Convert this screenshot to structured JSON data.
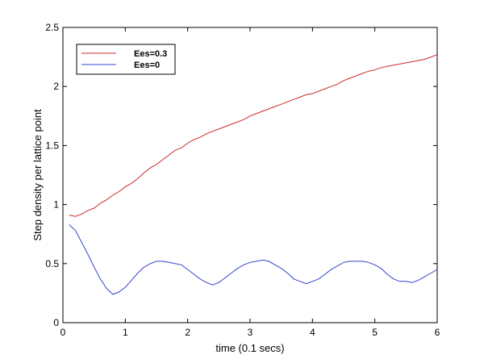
{
  "chart_data": {
    "type": "line",
    "title": "",
    "xlabel": "time (0.1 secs)",
    "ylabel": "Step density per lattice point",
    "xlim": [
      0,
      6
    ],
    "ylim": [
      0,
      2.5
    ],
    "xticks": [
      0,
      1,
      2,
      3,
      4,
      5,
      6
    ],
    "xtick_labels": [
      "0",
      "1",
      "2",
      "3",
      "4",
      "5",
      "6"
    ],
    "yticks": [
      0,
      0.5,
      1,
      1.5,
      2,
      2.5
    ],
    "ytick_labels": [
      "0",
      "0.5",
      "1",
      "1.5",
      "2",
      "2.5"
    ],
    "grid": false,
    "legend_position": "top-left",
    "series": [
      {
        "name": "Ees=0.3",
        "color": "#cc2a2a",
        "x": [
          0.1,
          0.2,
          0.3,
          0.4,
          0.5,
          0.6,
          0.7,
          0.8,
          0.9,
          1.0,
          1.1,
          1.2,
          1.3,
          1.4,
          1.5,
          1.6,
          1.7,
          1.8,
          1.9,
          2.0,
          2.1,
          2.2,
          2.3,
          2.4,
          2.5,
          2.6,
          2.7,
          2.8,
          2.9,
          3.0,
          3.1,
          3.2,
          3.3,
          3.4,
          3.5,
          3.6,
          3.7,
          3.8,
          3.9,
          4.0,
          4.1,
          4.2,
          4.3,
          4.4,
          4.5,
          4.6,
          4.7,
          4.8,
          4.9,
          5.0,
          5.1,
          5.2,
          5.3,
          5.4,
          5.5,
          5.6,
          5.7,
          5.8,
          5.9,
          6.0
        ],
        "y": [
          0.91,
          0.9,
          0.92,
          0.95,
          0.97,
          1.01,
          1.04,
          1.08,
          1.11,
          1.15,
          1.18,
          1.22,
          1.27,
          1.31,
          1.34,
          1.38,
          1.42,
          1.46,
          1.48,
          1.52,
          1.55,
          1.57,
          1.6,
          1.62,
          1.64,
          1.66,
          1.68,
          1.7,
          1.72,
          1.75,
          1.77,
          1.79,
          1.81,
          1.83,
          1.85,
          1.87,
          1.89,
          1.91,
          1.93,
          1.94,
          1.96,
          1.98,
          2.0,
          2.02,
          2.05,
          2.07,
          2.09,
          2.11,
          2.13,
          2.14,
          2.16,
          2.17,
          2.18,
          2.19,
          2.2,
          2.21,
          2.22,
          2.23,
          2.25,
          2.27
        ]
      },
      {
        "name": "Ees=0",
        "color": "#3344cc",
        "x": [
          0.1,
          0.2,
          0.3,
          0.4,
          0.5,
          0.6,
          0.7,
          0.8,
          0.9,
          1.0,
          1.1,
          1.2,
          1.3,
          1.4,
          1.5,
          1.6,
          1.7,
          1.8,
          1.9,
          2.0,
          2.1,
          2.2,
          2.3,
          2.4,
          2.5,
          2.6,
          2.7,
          2.8,
          2.9,
          3.0,
          3.1,
          3.2,
          3.3,
          3.4,
          3.5,
          3.6,
          3.7,
          3.8,
          3.9,
          4.0,
          4.1,
          4.2,
          4.3,
          4.4,
          4.5,
          4.6,
          4.7,
          4.8,
          4.9,
          5.0,
          5.1,
          5.2,
          5.3,
          5.4,
          5.5,
          5.6,
          5.7,
          5.8,
          5.9,
          6.0
        ],
        "y": [
          0.83,
          0.78,
          0.68,
          0.58,
          0.47,
          0.37,
          0.29,
          0.24,
          0.26,
          0.3,
          0.36,
          0.42,
          0.47,
          0.5,
          0.52,
          0.52,
          0.51,
          0.5,
          0.49,
          0.45,
          0.41,
          0.37,
          0.34,
          0.32,
          0.34,
          0.38,
          0.42,
          0.46,
          0.49,
          0.51,
          0.52,
          0.53,
          0.52,
          0.49,
          0.46,
          0.42,
          0.37,
          0.35,
          0.33,
          0.35,
          0.37,
          0.41,
          0.45,
          0.48,
          0.51,
          0.52,
          0.52,
          0.52,
          0.51,
          0.49,
          0.46,
          0.41,
          0.37,
          0.35,
          0.35,
          0.34,
          0.36,
          0.39,
          0.42,
          0.45
        ]
      }
    ]
  }
}
